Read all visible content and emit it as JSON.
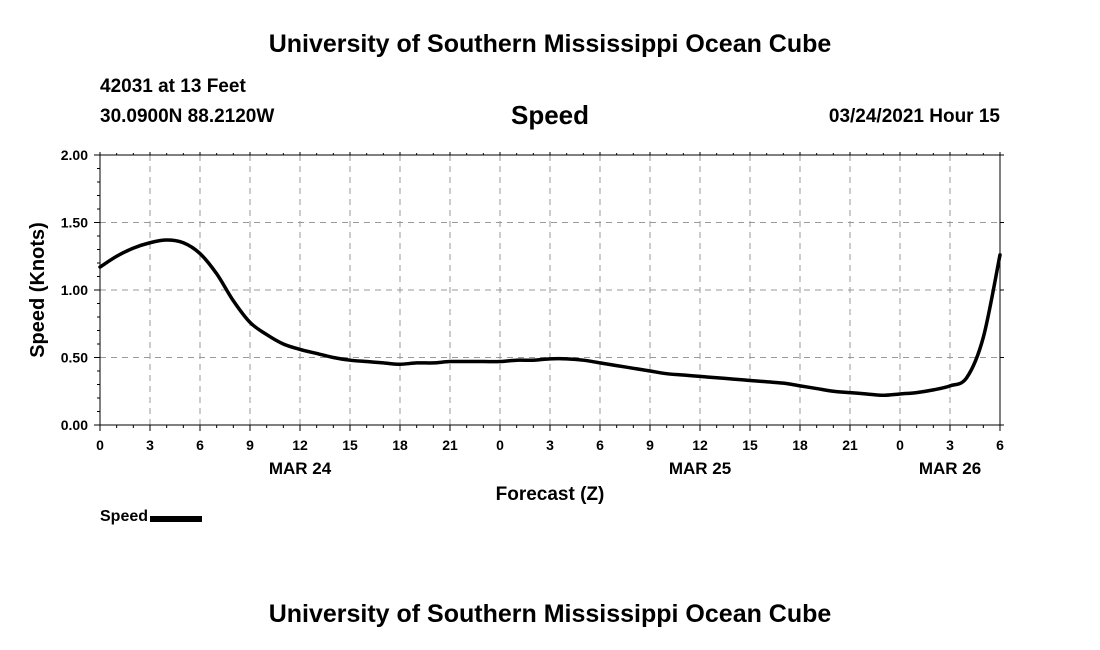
{
  "header": {
    "title": "University of Southern Mississippi Ocean Cube",
    "station": "42031 at 13 Feet",
    "coords": "30.0900N 88.2120W",
    "subtitle": "Speed",
    "timestamp": "03/24/2021 Hour 15"
  },
  "footer": {
    "title": "University of Southern Mississippi Ocean Cube"
  },
  "legend": {
    "label": "Speed",
    "color": "#000000"
  },
  "chart_data": {
    "type": "line",
    "title": "Speed",
    "xlabel": "Forecast (Z)",
    "ylabel": "Speed (Knots)",
    "ylim": [
      0,
      2.0
    ],
    "xlim": [
      0,
      54
    ],
    "grid": true,
    "legend_position": "bottom-left",
    "x_tick_values": [
      0,
      3,
      6,
      9,
      12,
      15,
      18,
      21,
      24,
      27,
      30,
      33,
      36,
      39,
      42,
      45,
      48,
      51,
      54
    ],
    "x_tick_labels": [
      "0",
      "3",
      "6",
      "9",
      "12",
      "15",
      "18",
      "21",
      "0",
      "3",
      "6",
      "9",
      "12",
      "15",
      "18",
      "21",
      "0",
      "3",
      "6"
    ],
    "y_tick_values": [
      0,
      0.5,
      1.0,
      1.5,
      2.0
    ],
    "y_tick_labels": [
      "0.00",
      "0.50",
      "1.00",
      "1.50",
      "2.00"
    ],
    "date_labels": [
      {
        "x": 12,
        "label": "MAR 24"
      },
      {
        "x": 36,
        "label": "MAR 25"
      },
      {
        "x": 51,
        "label": "MAR 26"
      }
    ],
    "series": [
      {
        "name": "Speed",
        "color": "#000000",
        "x": [
          0,
          1,
          2,
          3,
          4,
          5,
          6,
          7,
          8,
          9,
          10,
          11,
          12,
          13,
          14,
          15,
          16,
          17,
          18,
          19,
          20,
          21,
          22,
          23,
          24,
          25,
          26,
          27,
          28,
          29,
          30,
          31,
          32,
          33,
          34,
          35,
          36,
          37,
          38,
          39,
          40,
          41,
          42,
          43,
          44,
          45,
          46,
          47,
          48,
          49,
          50,
          51,
          52,
          53,
          54
        ],
        "values": [
          1.17,
          1.25,
          1.31,
          1.35,
          1.37,
          1.35,
          1.27,
          1.12,
          0.92,
          0.76,
          0.67,
          0.6,
          0.56,
          0.53,
          0.5,
          0.48,
          0.47,
          0.46,
          0.45,
          0.46,
          0.46,
          0.47,
          0.47,
          0.47,
          0.47,
          0.48,
          0.48,
          0.49,
          0.49,
          0.48,
          0.46,
          0.44,
          0.42,
          0.4,
          0.38,
          0.37,
          0.36,
          0.35,
          0.34,
          0.33,
          0.32,
          0.31,
          0.29,
          0.27,
          0.25,
          0.24,
          0.23,
          0.22,
          0.23,
          0.24,
          0.26,
          0.29,
          0.35,
          0.65,
          1.26
        ]
      }
    ]
  }
}
